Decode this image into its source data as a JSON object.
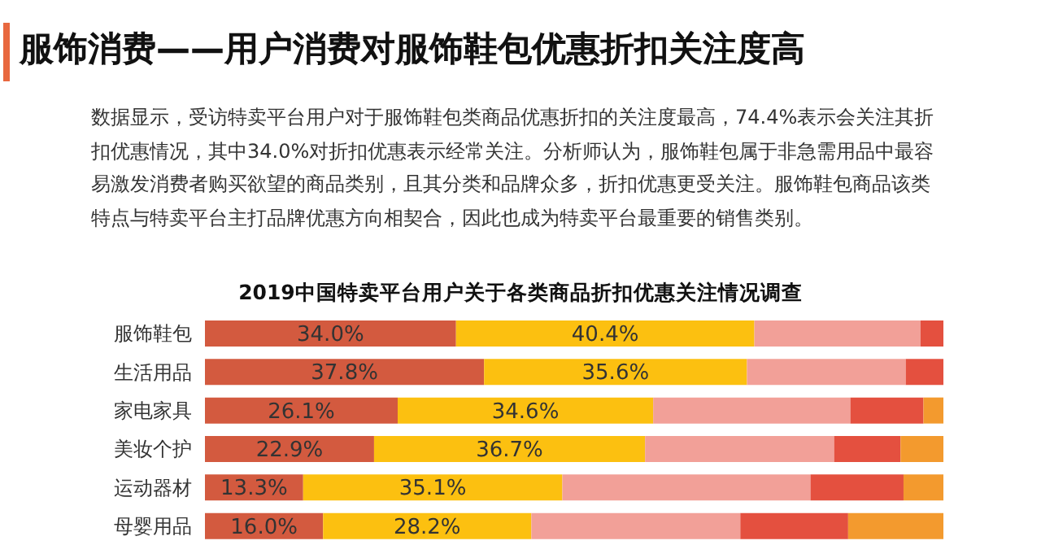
{
  "chart_data": {
    "type": "bar",
    "orientation": "horizontal",
    "stacked": true,
    "title": "服饰消费——用户消费对服饰鞋包优惠折扣关注度高",
    "subtitle": "2019中国特卖平台用户关于各类商品折扣优惠关注情况调查",
    "annotations": [
      "数据显示，受访特卖平台用户对于服饰鞋包类商品优惠折扣的关注度最高，74.4%表示会关注其折扣优惠情况，其中34.0%对折扣优惠表示经常关注。分析师认为，服饰鞋包属于非急需用品中最容易激发消费者购买欲望的商品类别，且其分类和品牌众多，折扣优惠更受关注。服饰鞋包商品该类特点与特卖平台主打品牌优惠方向相契合，因此也成为特卖平台最重要的销售类别。"
    ],
    "categories": [
      "服饰鞋包",
      "生活用品",
      "家电家具",
      "美妆个护",
      "运动器材",
      "母婴用品"
    ],
    "series": [
      {
        "color": "#d35a3f",
        "values": [
          34.0,
          37.8,
          26.1,
          22.9,
          13.3,
          16.0
        ],
        "value_labels": [
          "34.0%",
          "37.8%",
          "26.1%",
          "22.9%",
          "13.3%",
          "16.0%"
        ]
      },
      {
        "color": "#fcc010",
        "values": [
          40.4,
          35.6,
          34.6,
          36.7,
          35.1,
          28.2
        ],
        "value_labels": [
          "40.4%",
          "35.6%",
          "34.6%",
          "36.7%",
          "35.1%",
          "28.2%"
        ]
      },
      {
        "color": "#f2a098",
        "values": [
          22.5,
          21.5,
          26.7,
          25.6,
          33.6,
          28.3
        ]
      },
      {
        "color": "#e4503f",
        "values": [
          3.1,
          5.1,
          9.9,
          9.0,
          12.6,
          14.6
        ]
      },
      {
        "color": "#f39a2e",
        "values": [
          0,
          0,
          2.7,
          5.8,
          5.4,
          12.9
        ]
      }
    ],
    "legend": false,
    "grid": false
  }
}
